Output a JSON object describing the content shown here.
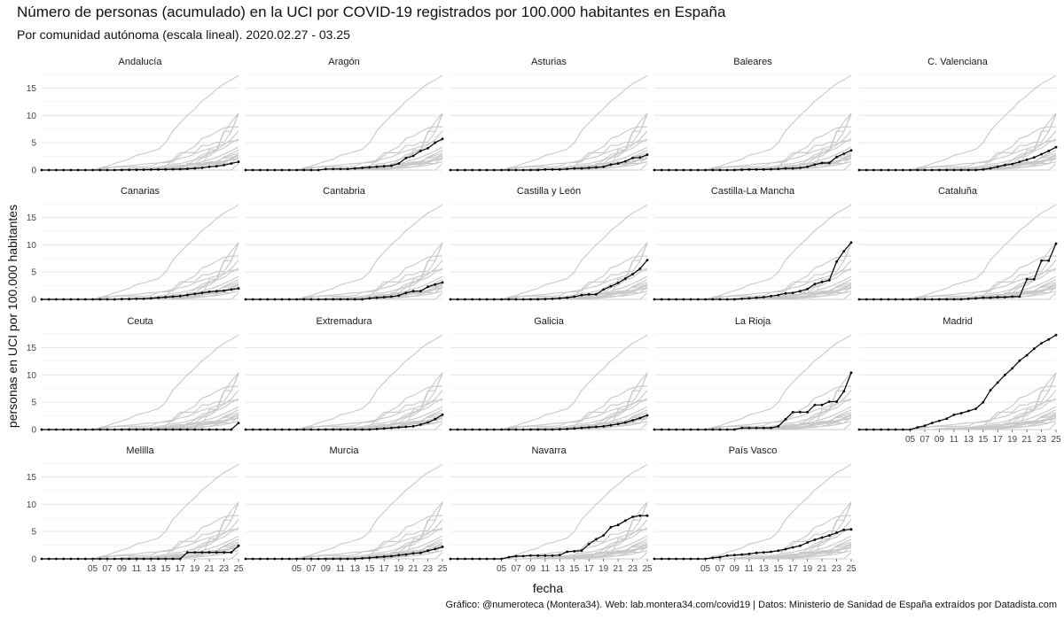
{
  "chart_data": {
    "type": "line",
    "title": "Número de personas (acumulado) en la UCI por COVID-19 registrados por 100.000 habitantes en España",
    "subtitle": "Por comunidad autónoma (escala lineal). 2020.02.27 - 03.25",
    "xlabel": "fecha",
    "ylabel": "personas en UCI por 100.000 habitantes",
    "caption": "Gráfico: @numeroteca (Montera34). Web: lab.montera34.com/covid19 | Datos: Ministerio de Sanidad de España extraídos por Datadista.com",
    "x": [
      "02-27",
      "02-28",
      "02-29",
      "03-01",
      "03-02",
      "03-03",
      "03-04",
      "03-05",
      "03-06",
      "03-07",
      "03-08",
      "03-09",
      "03-10",
      "03-11",
      "03-12",
      "03-13",
      "03-14",
      "03-15",
      "03-16",
      "03-17",
      "03-18",
      "03-19",
      "03-20",
      "03-21",
      "03-22",
      "03-23",
      "03-24",
      "03-25"
    ],
    "x_tick_labels": [
      "05",
      "07",
      "09",
      "11",
      "13",
      "15",
      "17",
      "19",
      "21",
      "23",
      "25"
    ],
    "y_ticks": [
      0,
      5,
      10,
      15
    ],
    "ylim": [
      0,
      17.5
    ],
    "grid": true,
    "highlight_color": "#000000",
    "background_color": "#c8c8c8",
    "series": [
      {
        "name": "Andalucía",
        "values": [
          0,
          0,
          0,
          0,
          0,
          0,
          0,
          0,
          0,
          0,
          0,
          0.02,
          0.03,
          0.05,
          0.06,
          0.08,
          0.1,
          0.12,
          0.14,
          0.17,
          0.22,
          0.3,
          0.4,
          0.6,
          0.7,
          0.9,
          1.2,
          1.5
        ]
      },
      {
        "name": "Aragón",
        "values": [
          0,
          0,
          0,
          0,
          0,
          0,
          0,
          0,
          0,
          0,
          0,
          0.2,
          0.2,
          0.2,
          0.2,
          0.3,
          0.4,
          0.5,
          0.6,
          0.7,
          0.8,
          1.2,
          2.2,
          2.6,
          3.5,
          4.0,
          5.0,
          5.7
        ]
      },
      {
        "name": "Asturias",
        "values": [
          0,
          0,
          0,
          0,
          0,
          0,
          0,
          0,
          0,
          0,
          0,
          0,
          0,
          0.1,
          0.1,
          0.1,
          0.2,
          0.3,
          0.3,
          0.4,
          0.5,
          0.6,
          1.0,
          1.2,
          1.6,
          2.2,
          2.3,
          2.8
        ]
      },
      {
        "name": "Baleares",
        "values": [
          0,
          0,
          0,
          0,
          0,
          0,
          0,
          0,
          0,
          0,
          0,
          0,
          0.05,
          0.1,
          0.1,
          0.1,
          0.15,
          0.2,
          0.3,
          0.3,
          0.4,
          0.6,
          1.0,
          1.3,
          1.3,
          2.4,
          3.0,
          3.6
        ]
      },
      {
        "name": "C. Valenciana",
        "values": [
          0,
          0,
          0,
          0,
          0,
          0,
          0,
          0,
          0,
          0,
          0,
          0,
          0,
          0,
          0,
          0,
          0,
          0.1,
          0.3,
          0.6,
          0.9,
          1.1,
          1.5,
          1.9,
          2.3,
          2.9,
          3.5,
          4.2
        ]
      },
      {
        "name": "Canarias",
        "values": [
          0,
          0,
          0,
          0,
          0,
          0,
          0,
          0,
          0,
          0,
          0,
          0.05,
          0.05,
          0.1,
          0.1,
          0.2,
          0.3,
          0.4,
          0.5,
          0.6,
          0.8,
          1.0,
          1.2,
          1.4,
          1.5,
          1.6,
          1.8,
          2.0
        ]
      },
      {
        "name": "Cantabria",
        "values": [
          0,
          0,
          0,
          0,
          0,
          0,
          0,
          0,
          0,
          0,
          0,
          0,
          0,
          0,
          0,
          0,
          0,
          0.2,
          0.3,
          0.4,
          0.5,
          0.7,
          1.2,
          1.5,
          1.5,
          2.3,
          2.7,
          3.1
        ]
      },
      {
        "name": "Castilla y León",
        "values": [
          0,
          0,
          0,
          0,
          0,
          0,
          0,
          0,
          0,
          0,
          0,
          0,
          0,
          0.05,
          0.1,
          0.2,
          0.3,
          0.5,
          0.8,
          0.9,
          0.9,
          1.8,
          2.4,
          3.0,
          3.8,
          4.6,
          5.6,
          7.2
        ]
      },
      {
        "name": "Castilla-La Mancha",
        "values": [
          0,
          0,
          0,
          0,
          0,
          0,
          0,
          0,
          0,
          0,
          0,
          0,
          0.1,
          0.2,
          0.3,
          0.4,
          0.6,
          0.8,
          1.1,
          1.2,
          1.5,
          1.9,
          2.8,
          3.2,
          3.5,
          6.9,
          8.8,
          10.4
        ]
      },
      {
        "name": "Cataluña",
        "values": [
          0,
          0,
          0,
          0,
          0,
          0,
          0,
          0,
          0,
          0,
          0,
          0,
          0,
          0,
          0,
          0.1,
          0.2,
          0.3,
          0.3,
          0.4,
          0.4,
          0.5,
          0.5,
          3.7,
          3.7,
          7.1,
          7.1,
          10.2
        ]
      },
      {
        "name": "Ceuta",
        "values": [
          0,
          0,
          0,
          0,
          0,
          0,
          0,
          0,
          0,
          0,
          0,
          0,
          0,
          0,
          0,
          0,
          0,
          0,
          0,
          0,
          0,
          0,
          0,
          0,
          0,
          0,
          0,
          1.2
        ]
      },
      {
        "name": "Extremadura",
        "values": [
          0,
          0,
          0,
          0,
          0,
          0,
          0,
          0,
          0,
          0,
          0,
          0,
          0,
          0,
          0,
          0,
          0,
          0,
          0.1,
          0.2,
          0.3,
          0.4,
          0.5,
          0.6,
          0.9,
          1.3,
          1.9,
          2.7
        ]
      },
      {
        "name": "Galicia",
        "values": [
          0,
          0,
          0,
          0,
          0,
          0,
          0,
          0,
          0,
          0,
          0,
          0,
          0,
          0,
          0,
          0.05,
          0.1,
          0.2,
          0.3,
          0.4,
          0.5,
          0.6,
          0.8,
          1.0,
          1.3,
          1.7,
          2.1,
          2.6
        ]
      },
      {
        "name": "La Rioja",
        "values": [
          0,
          0,
          0,
          0,
          0,
          0,
          0,
          0,
          0,
          0,
          0,
          0,
          0.3,
          0.3,
          0.3,
          0.3,
          0.3,
          0.6,
          1.9,
          3.2,
          3.2,
          3.2,
          4.5,
          4.5,
          5.1,
          5.1,
          7.0,
          10.4
        ]
      },
      {
        "name": "Madrid",
        "values": [
          0,
          0,
          0,
          0,
          0,
          0,
          0,
          0,
          0.4,
          0.7,
          1.2,
          1.6,
          2.0,
          2.7,
          3.0,
          3.4,
          3.8,
          5.0,
          7.2,
          8.6,
          10.0,
          11.2,
          12.6,
          13.6,
          14.8,
          15.8,
          16.5,
          17.3
        ]
      },
      {
        "name": "Melilla",
        "values": [
          0,
          0,
          0,
          0,
          0,
          0,
          0,
          0,
          0,
          0,
          0,
          0,
          0,
          0,
          0,
          0,
          0,
          0,
          0,
          0,
          1.2,
          1.2,
          1.2,
          1.2,
          1.2,
          1.2,
          1.2,
          2.4
        ]
      },
      {
        "name": "Murcia",
        "values": [
          0,
          0,
          0,
          0,
          0,
          0,
          0,
          0,
          0,
          0,
          0,
          0,
          0,
          0,
          0,
          0,
          0.1,
          0.2,
          0.3,
          0.4,
          0.5,
          0.7,
          0.8,
          1.0,
          1.1,
          1.5,
          1.8,
          2.2
        ]
      },
      {
        "name": "Navarra",
        "values": [
          0,
          0,
          0,
          0,
          0,
          0,
          0,
          0,
          0.3,
          0.5,
          0.5,
          0.6,
          0.6,
          0.6,
          0.6,
          0.7,
          1.3,
          1.4,
          1.5,
          2.7,
          3.6,
          4.3,
          5.8,
          6.2,
          7.0,
          7.7,
          7.9,
          7.9
        ]
      },
      {
        "name": "País Vasco",
        "values": [
          0,
          0,
          0,
          0,
          0,
          0,
          0,
          0,
          0.2,
          0.3,
          0.6,
          0.7,
          0.8,
          0.9,
          1.1,
          1.2,
          1.3,
          1.5,
          1.8,
          2.1,
          2.4,
          3.0,
          3.5,
          3.9,
          4.3,
          4.8,
          5.3,
          5.4
        ]
      }
    ]
  }
}
